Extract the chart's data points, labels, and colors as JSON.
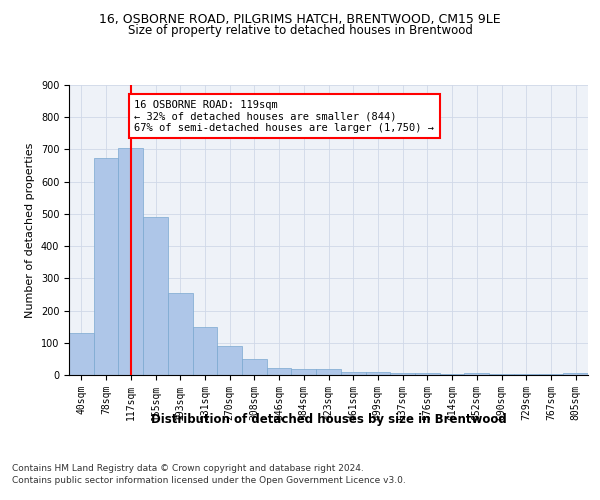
{
  "title1": "16, OSBORNE ROAD, PILGRIMS HATCH, BRENTWOOD, CM15 9LE",
  "title2": "Size of property relative to detached houses in Brentwood",
  "xlabel": "Distribution of detached houses by size in Brentwood",
  "ylabel": "Number of detached properties",
  "bin_labels": [
    "40sqm",
    "78sqm",
    "117sqm",
    "155sqm",
    "193sqm",
    "231sqm",
    "270sqm",
    "308sqm",
    "346sqm",
    "384sqm",
    "423sqm",
    "461sqm",
    "499sqm",
    "537sqm",
    "576sqm",
    "614sqm",
    "652sqm",
    "690sqm",
    "729sqm",
    "767sqm",
    "805sqm"
  ],
  "bar_heights": [
    130,
    675,
    705,
    490,
    255,
    150,
    90,
    50,
    22,
    18,
    18,
    10,
    8,
    5,
    5,
    2,
    5,
    2,
    2,
    2,
    7
  ],
  "bar_color": "#aec6e8",
  "bar_edge_color": "#7aa8d0",
  "property_line_bin_index": 2,
  "annotation_text": "16 OSBORNE ROAD: 119sqm\n← 32% of detached houses are smaller (844)\n67% of semi-detached houses are larger (1,750) →",
  "annotation_box_color": "white",
  "annotation_box_edge_color": "red",
  "vline_color": "red",
  "ylim": [
    0,
    900
  ],
  "yticks": [
    0,
    100,
    200,
    300,
    400,
    500,
    600,
    700,
    800,
    900
  ],
  "grid_color": "#d0d8e8",
  "background_color": "#eef2f8",
  "footer_line1": "Contains HM Land Registry data © Crown copyright and database right 2024.",
  "footer_line2": "Contains public sector information licensed under the Open Government Licence v3.0.",
  "title1_fontsize": 9,
  "title2_fontsize": 8.5,
  "xlabel_fontsize": 8.5,
  "ylabel_fontsize": 8,
  "tick_fontsize": 7,
  "annotation_fontsize": 7.5,
  "footer_fontsize": 6.5
}
